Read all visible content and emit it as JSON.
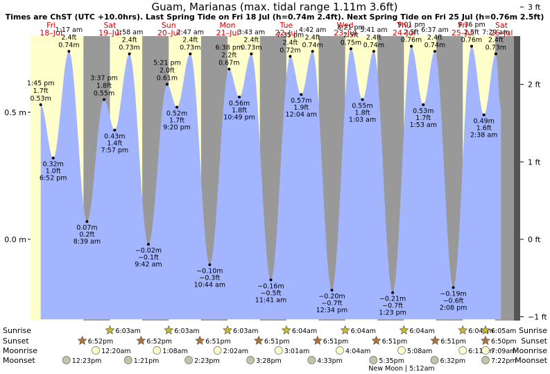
{
  "chart_data": {
    "type": "area",
    "title": "Guam, Marianas (max. tidal range 1.11m 3.6ft)",
    "subtitle": "Times are ChST (UTC +10.0hrs). Last Spring Tide on Fri 18 Jul (h=0.74m 2.4ft). Next Spring Tide on Fri 25 Jul (h=0.76m 2.5ft)",
    "x_unit": "days",
    "y_unit": "m",
    "ylim": [
      -0.32,
      0.8
    ],
    "xlim": [
      17.9,
      26.12
    ],
    "days": [
      {
        "name": "Fri",
        "date": "18–Jul"
      },
      {
        "name": "Sat",
        "date": "19–Jul"
      },
      {
        "name": "Sun",
        "date": "20–Jul"
      },
      {
        "name": "Mon",
        "date": "21–Jul"
      },
      {
        "name": "Tue",
        "date": "22–Jul"
      },
      {
        "name": "Wed",
        "date": "23–Jul"
      },
      {
        "name": "Thu",
        "date": "24–Jul"
      },
      {
        "name": "Fri",
        "date": "25–Jul"
      },
      {
        "name": "Sat",
        "date": "26–Jul"
      }
    ],
    "y_ticks_m": [
      {
        "v": 0.5,
        "label": "0.5 m"
      },
      {
        "v": 0.0,
        "label": "0.0 m"
      }
    ],
    "y_ticks_ft": [
      {
        "v": 3,
        "label": "3 ft"
      },
      {
        "v": 2,
        "label": "2 ft"
      },
      {
        "v": 1,
        "label": "1 ft"
      },
      {
        "v": 0,
        "label": "0 ft"
      },
      {
        "v": -1,
        "label": "−1 ft"
      }
    ],
    "nights": [
      [
        18.8,
        19.25
      ],
      [
        19.8,
        20.25
      ],
      [
        20.8,
        21.25
      ],
      [
        21.8,
        22.25
      ],
      [
        22.8,
        23.25
      ],
      [
        23.8,
        24.25
      ],
      [
        24.8,
        25.25
      ],
      [
        25.8,
        26.25
      ]
    ],
    "tides": [
      {
        "x": 18.0729,
        "h": 0.53,
        "ft": "1.7 ft",
        "time": "1:45 pm",
        "type": "high"
      },
      {
        "x": 18.2861,
        "h": 0.32,
        "ft": "1.0 ft",
        "time": "6:52 pm",
        "type": "low"
      },
      {
        "x": 18.5535,
        "h": 0.74,
        "ft": "2.4 ft",
        "time": "1:17 am",
        "type": "high"
      },
      {
        "x": 18.8604,
        "h": 0.07,
        "ft": "0.2 ft",
        "time": "8:39 am",
        "type": "low"
      },
      {
        "x": 19.1507,
        "h": 0.55,
        "ft": "1.8 ft",
        "time": "3:37 pm",
        "type": "high"
      },
      {
        "x": 19.3313,
        "h": 0.43,
        "ft": "1.4 ft",
        "time": "7:57 pm",
        "type": "low"
      },
      {
        "x": 19.5819,
        "h": 0.73,
        "ft": "2.4 ft",
        "time": "1:58 am",
        "type": "high"
      },
      {
        "x": 19.9042,
        "h": -0.02,
        "ft": "−0.1 ft",
        "time": "9:42 am",
        "type": "low"
      },
      {
        "x": 20.2229,
        "h": 0.61,
        "ft": "2.0 ft",
        "time": "5:21 pm",
        "type": "high"
      },
      {
        "x": 20.3889,
        "h": 0.52,
        "ft": "1.7 ft",
        "time": "9:20 pm",
        "type": "low"
      },
      {
        "x": 20.616,
        "h": 0.73,
        "ft": "2.4 ft",
        "time": "2:47 am",
        "type": "high"
      },
      {
        "x": 20.9472,
        "h": -0.1,
        "ft": "−0.3 ft",
        "time": "10:44 am",
        "type": "low"
      },
      {
        "x": 21.2764,
        "h": 0.67,
        "ft": "2.2 ft",
        "time": "6:38 pm",
        "type": "high"
      },
      {
        "x": 21.4507,
        "h": 0.56,
        "ft": "1.8 ft",
        "time": "10:49 pm",
        "type": "low"
      },
      {
        "x": 21.6549,
        "h": 0.73,
        "ft": "2.4 ft",
        "time": "3:43 am",
        "type": "high"
      },
      {
        "x": 21.9868,
        "h": -0.16,
        "ft": "−0.5 ft",
        "time": "11:41 am",
        "type": "low"
      },
      {
        "x": 22.316,
        "h": 0.72,
        "ft": "2.4 ft",
        "time": "7:35 pm",
        "type": "high"
      },
      {
        "x": 22.5028,
        "h": 0.57,
        "ft": "1.9 ft",
        "time": "12:04 am",
        "type": "low"
      },
      {
        "x": 22.6958,
        "h": 0.74,
        "ft": "2.4 ft",
        "time": "4:42 am",
        "type": "high"
      },
      {
        "x": 23.0236,
        "h": -0.2,
        "ft": "−0.7 ft",
        "time": "12:34 pm",
        "type": "low"
      },
      {
        "x": 23.3479,
        "h": 0.75,
        "ft": "2.5 ft",
        "time": "8:21 pm",
        "type": "high"
      },
      {
        "x": 23.5437,
        "h": 0.55,
        "ft": "1.8 ft",
        "time": "1:03 am",
        "type": "low"
      },
      {
        "x": 23.7368,
        "h": 0.74,
        "ft": "2.4 ft",
        "time": "5:41 am",
        "type": "high"
      },
      {
        "x": 24.0576,
        "h": -0.21,
        "ft": "−0.7 ft",
        "time": "1:23 pm",
        "type": "low"
      },
      {
        "x": 24.3757,
        "h": 0.76,
        "ft": "2.5 ft",
        "time": "9:01 pm",
        "type": "high"
      },
      {
        "x": 24.5785,
        "h": 0.53,
        "ft": "1.7 ft",
        "time": "1:53 am",
        "type": "low"
      },
      {
        "x": 24.7757,
        "h": 0.74,
        "ft": "2.4 ft",
        "time": "6:37 am",
        "type": "high"
      },
      {
        "x": 25.0889,
        "h": -0.19,
        "ft": "−0.6 ft",
        "time": "2:08 pm",
        "type": "low"
      },
      {
        "x": 25.4,
        "h": 0.76,
        "ft": "2.5 ft",
        "time": "9:36 pm",
        "type": "high"
      },
      {
        "x": 25.6097,
        "h": 0.49,
        "ft": "1.6 ft",
        "time": "2:38 am",
        "type": "low"
      },
      {
        "x": 25.8118,
        "h": 0.73,
        "ft": "2.4 ft",
        "time": "7:29 am",
        "type": "high"
      }
    ],
    "rows": [
      {
        "label": "Sunrise",
        "kind": "sunrise",
        "events": [
          {
            "x": 19.25,
            "t": "6:03am"
          },
          {
            "x": 20.25,
            "t": "6:03am"
          },
          {
            "x": 21.25,
            "t": "6:03am"
          },
          {
            "x": 22.25,
            "t": "6:04am"
          },
          {
            "x": 23.25,
            "t": "6:04am"
          },
          {
            "x": 24.25,
            "t": "6:04am"
          },
          {
            "x": 25.25,
            "t": "6:04am"
          },
          {
            "x": 26.25,
            "t": "6:05am"
          }
        ]
      },
      {
        "label": "Sunset",
        "kind": "sunset",
        "events": [
          {
            "x": 18.78,
            "t": "6:52pm"
          },
          {
            "x": 19.78,
            "t": "6:52pm"
          },
          {
            "x": 20.78,
            "t": "6:51pm"
          },
          {
            "x": 21.78,
            "t": "6:51pm"
          },
          {
            "x": 22.78,
            "t": "6:51pm"
          },
          {
            "x": 23.78,
            "t": "6:51pm"
          },
          {
            "x": 24.78,
            "t": "6:51pm"
          },
          {
            "x": 25.78,
            "t": "6:50pm"
          }
        ]
      },
      {
        "label": "Moonrise",
        "kind": "moonrise",
        "events": [
          {
            "x": 19.01,
            "t": "12:20am"
          },
          {
            "x": 20.05,
            "t": "1:08am"
          },
          {
            "x": 21.08,
            "t": "2:02am"
          },
          {
            "x": 22.12,
            "t": "3:01am"
          },
          {
            "x": 23.16,
            "t": "4:04am"
          },
          {
            "x": 24.21,
            "t": "5:08am"
          },
          {
            "x": 25.25,
            "t": "6:11am"
          },
          {
            "x": 26.29,
            "t": "7:09am"
          }
        ]
      },
      {
        "label": "Moonset",
        "kind": "moonset",
        "events": [
          {
            "x": 18.51,
            "t": "12:23pm"
          },
          {
            "x": 19.56,
            "t": "1:21pm"
          },
          {
            "x": 20.59,
            "t": "2:23pm"
          },
          {
            "x": 21.64,
            "t": "3:28pm"
          },
          {
            "x": 22.68,
            "t": "4:33pm"
          },
          {
            "x": 23.73,
            "t": "5:35pm"
          },
          {
            "x": 24.77,
            "t": "6:32pm"
          },
          {
            "x": 25.8,
            "t": "7:22pm"
          }
        ]
      }
    ],
    "moon_phase": {
      "x": 24.21,
      "text": "New Moon | 5:12am"
    },
    "colors": {
      "day": "#ffffcc",
      "night": "#999999",
      "water": "#a3b5ff",
      "day_label": "#d60000",
      "ruler": "#555555",
      "sun": "#c8b836",
      "sunset": "#b87333",
      "moonrise": "#ffffcc",
      "moonset": "#c4c4a8"
    }
  }
}
